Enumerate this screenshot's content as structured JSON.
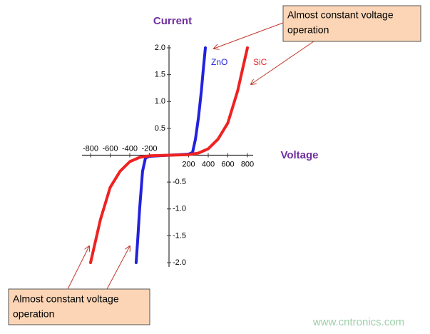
{
  "chart_data": {
    "type": "line",
    "y_label": "Current",
    "x_label": "Voltage",
    "xlim": [
      -800,
      800
    ],
    "ylim": [
      -2,
      2
    ],
    "xticks": [
      -800,
      -600,
      -400,
      -200,
      200,
      400,
      600,
      800
    ],
    "yticks": [
      {
        "value": 2,
        "label": "2.0"
      },
      1.5,
      {
        "value": 1,
        "label": "1.0"
      },
      0.5,
      -0.5,
      {
        "value": -1,
        "label": "-1.0"
      },
      -1.5,
      {
        "value": -2,
        "label": "-2.0"
      }
    ],
    "series": [
      {
        "name": "ZnO",
        "color": "#2222dd",
        "x": [
          -335,
          -320,
          -300,
          -270,
          -240,
          -200,
          0,
          200,
          240,
          270,
          300,
          330,
          350,
          371
        ],
        "values": [
          -2.0,
          -1.6,
          -1.0,
          -0.3,
          -0.05,
          -0.02,
          0,
          0.02,
          0.05,
          0.3,
          0.7,
          1.2,
          1.6,
          2.0
        ]
      },
      {
        "name": "SiC",
        "color": "#ee2222",
        "x": [
          -800,
          -750,
          -700,
          -600,
          -500,
          -400,
          -300,
          -200,
          0,
          200,
          300,
          400,
          500,
          600,
          700,
          750,
          800
        ],
        "values": [
          -2.0,
          -1.6,
          -1.2,
          -0.6,
          -0.3,
          -0.12,
          -0.04,
          -0.01,
          0,
          0.01,
          0.04,
          0.12,
          0.3,
          0.6,
          1.2,
          1.6,
          2.0
        ]
      }
    ],
    "annotations": [
      {
        "lines": [
          "Almost constant voltage",
          "operation"
        ]
      },
      {
        "lines": [
          "Almost constant voltage",
          "operation"
        ]
      }
    ],
    "watermark": "www.cntronics.com"
  }
}
